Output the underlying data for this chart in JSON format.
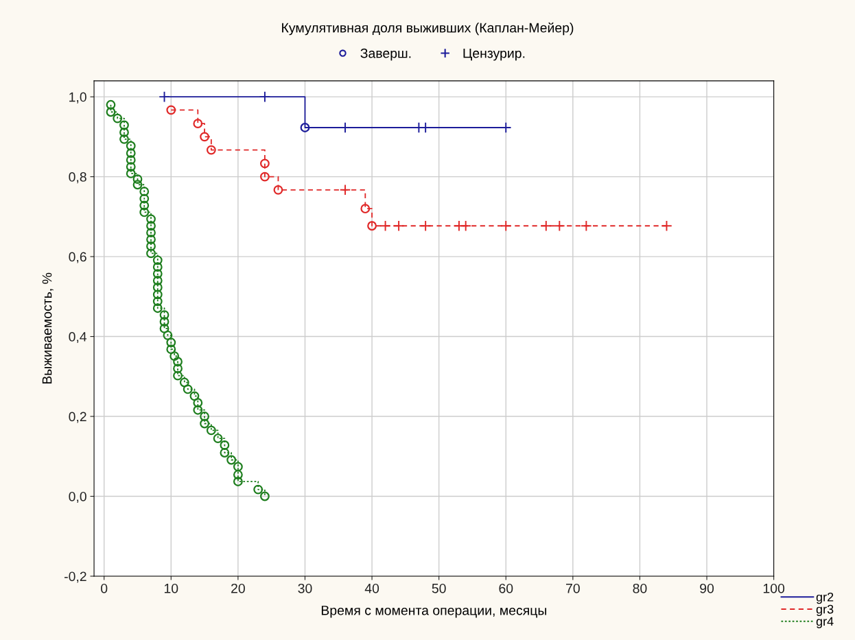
{
  "chart_data": {
    "type": "step",
    "title": "Кумулятивная доля выживших (Каплан-Мейер)",
    "xlabel": "Время с момента операции, месяцы",
    "ylabel": "Выживаемость, %",
    "xlim": [
      -1.5,
      100
    ],
    "ylim": [
      -0.2,
      1.04
    ],
    "xticks": [
      0,
      10,
      20,
      30,
      40,
      50,
      60,
      70,
      80,
      90,
      100
    ],
    "yticks": [
      {
        "value": -0.2,
        "label": "-0,2"
      },
      {
        "value": 0,
        "label": "0,0"
      },
      {
        "value": 0.2,
        "label": "0,2"
      },
      {
        "value": 0.4,
        "label": "0,4"
      },
      {
        "value": 0.6,
        "label": "0,6"
      },
      {
        "value": 0.8,
        "label": "0,8"
      },
      {
        "value": 1.0,
        "label": "1,0"
      }
    ],
    "grid": true,
    "legend": "bottom right",
    "series": [
      {
        "name": "gr2",
        "color": "#1c1c9a",
        "line_style": "solid",
        "x": [
          9,
          30,
          60
        ],
        "values": [
          1.0,
          0.923,
          0.923
        ]
      },
      {
        "name": "gr3",
        "color": "#e02828",
        "line_style": "dashed",
        "x": [
          10,
          14,
          15,
          16,
          24,
          24,
          26,
          39,
          40,
          84
        ],
        "values": [
          0.967,
          0.933,
          0.9,
          0.867,
          0.833,
          0.8,
          0.767,
          0.72,
          0.677,
          0.677
        ]
      },
      {
        "name": "gr4",
        "color": "#1e7e1e",
        "line_style": "dotted",
        "x": [
          1,
          1,
          2,
          3,
          3,
          3,
          4,
          4,
          4,
          4,
          4,
          5,
          5,
          6,
          6,
          6,
          6,
          7,
          7,
          7,
          7,
          7,
          7,
          8,
          8,
          8,
          8,
          8,
          8,
          8,
          8,
          9,
          9,
          9,
          9.5,
          10,
          10,
          10.5,
          11,
          11,
          11,
          12,
          12.5,
          13.5,
          14,
          14,
          15,
          15,
          16,
          17,
          18,
          18,
          19,
          20,
          20,
          20,
          23,
          24
        ],
        "values": [
          0.98,
          0.962,
          0.946,
          0.929,
          0.911,
          0.894,
          0.877,
          0.859,
          0.842,
          0.825,
          0.808,
          0.794,
          0.78,
          0.763,
          0.745,
          0.728,
          0.711,
          0.694,
          0.677,
          0.66,
          0.643,
          0.626,
          0.608,
          0.591,
          0.574,
          0.557,
          0.54,
          0.523,
          0.505,
          0.488,
          0.471,
          0.454,
          0.437,
          0.42,
          0.403,
          0.385,
          0.368,
          0.351,
          0.337,
          0.32,
          0.302,
          0.285,
          0.268,
          0.251,
          0.234,
          0.216,
          0.2,
          0.182,
          0.165,
          0.145,
          0.128,
          0.109,
          0.091,
          0.074,
          0.054,
          0.037,
          0.017,
          0.0
        ]
      },
      {
        "name": "Заверш.",
        "type": "scatter",
        "marker": "circle",
        "color": "#1c1c9a",
        "x": [
          30
        ],
        "values": [
          0.923
        ]
      },
      {
        "name": "Цензурир.",
        "type": "scatter",
        "marker": "cross",
        "color": "#1c1c9a",
        "x": [
          9,
          24,
          36,
          47,
          48,
          60
        ],
        "values": [
          1.0,
          1.0,
          0.923,
          0.923,
          0.923,
          0.923
        ]
      },
      {
        "type": "scatter",
        "marker": "circle",
        "color": "#e02828",
        "x": [
          10,
          14,
          15,
          16,
          24,
          24,
          26,
          39,
          40
        ],
        "values": [
          0.967,
          0.933,
          0.9,
          0.867,
          0.833,
          0.8,
          0.767,
          0.72,
          0.677
        ]
      },
      {
        "type": "scatter",
        "marker": "cross",
        "color": "#e02828",
        "x": [
          36,
          42,
          44,
          48,
          53,
          54,
          60,
          66,
          68,
          72,
          84
        ],
        "values": [
          0.767,
          0.677,
          0.677,
          0.677,
          0.677,
          0.677,
          0.677,
          0.677,
          0.677,
          0.677,
          0.677
        ]
      },
      {
        "type": "scatter",
        "marker": "circle",
        "color": "#1e7e1e",
        "x": [
          1,
          1,
          2,
          3,
          3,
          3,
          4,
          4,
          4,
          4,
          4,
          5,
          5,
          6,
          6,
          6,
          6,
          7,
          7,
          7,
          7,
          7,
          7,
          8,
          8,
          8,
          8,
          8,
          8,
          8,
          8,
          9,
          9,
          9,
          9.5,
          10,
          10,
          10.5,
          11,
          11,
          11,
          12,
          12.5,
          13.5,
          14,
          14,
          15,
          15,
          16,
          17,
          18,
          18,
          19,
          20,
          20,
          20,
          23,
          24
        ],
        "values": [
          0.98,
          0.962,
          0.946,
          0.929,
          0.911,
          0.894,
          0.877,
          0.859,
          0.842,
          0.825,
          0.808,
          0.794,
          0.78,
          0.763,
          0.745,
          0.728,
          0.711,
          0.694,
          0.677,
          0.66,
          0.643,
          0.626,
          0.608,
          0.591,
          0.574,
          0.557,
          0.54,
          0.523,
          0.505,
          0.488,
          0.471,
          0.454,
          0.437,
          0.42,
          0.403,
          0.385,
          0.368,
          0.351,
          0.337,
          0.32,
          0.302,
          0.285,
          0.268,
          0.251,
          0.234,
          0.216,
          0.2,
          0.182,
          0.165,
          0.145,
          0.128,
          0.109,
          0.091,
          0.074,
          0.054,
          0.037,
          0.017,
          0.0
        ]
      }
    ]
  }
}
